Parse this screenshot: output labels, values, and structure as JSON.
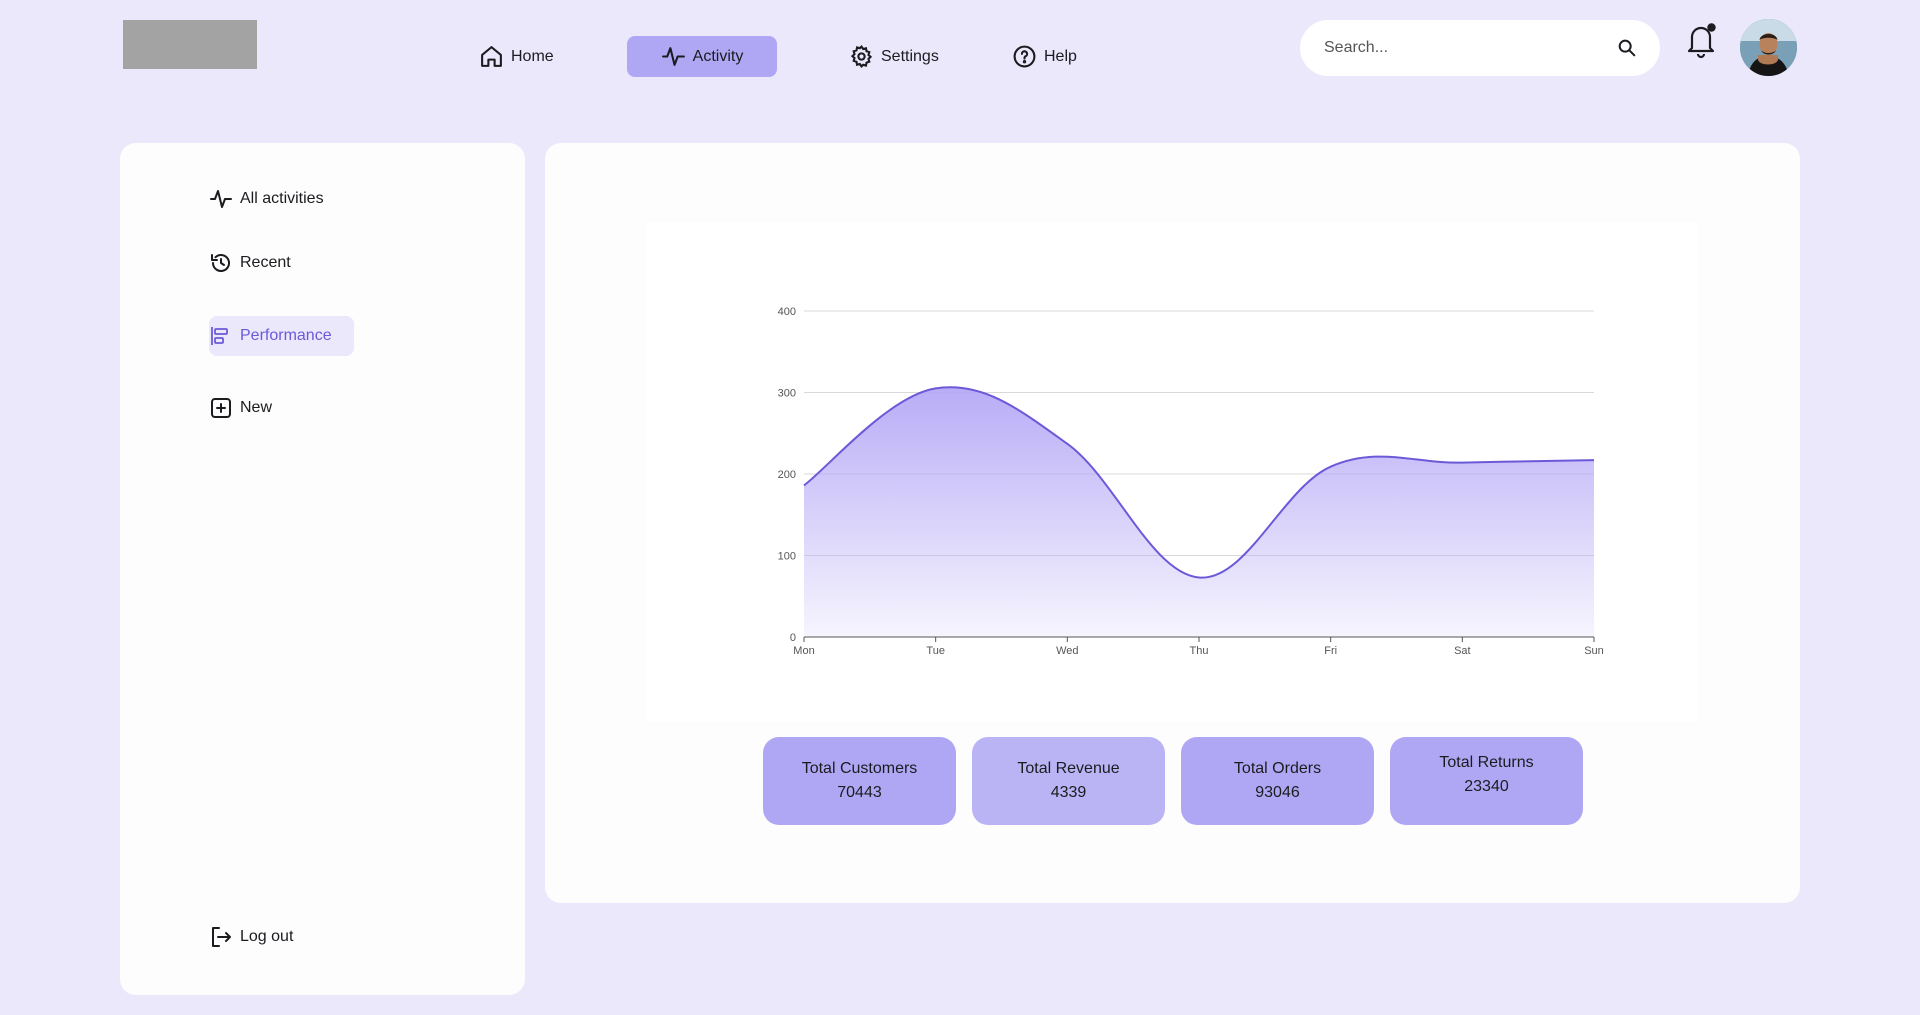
{
  "header": {
    "logo": "logo-placeholder",
    "nav": [
      {
        "label": "Home",
        "icon": "home-icon",
        "active": false
      },
      {
        "label": "Activity",
        "icon": "activity-icon",
        "active": true
      },
      {
        "label": "Settings",
        "icon": "gear-icon",
        "active": false
      },
      {
        "label": "Help",
        "icon": "help-icon",
        "active": false
      }
    ],
    "search": {
      "placeholder": "Search...",
      "value": ""
    },
    "notifications_icon": "bell-icon",
    "avatar_icon": "user-avatar"
  },
  "sidebar": {
    "items": [
      {
        "label": "All activities",
        "icon": "activity-icon",
        "active": false
      },
      {
        "label": "Recent",
        "icon": "history-icon",
        "active": false
      },
      {
        "label": "Performance",
        "icon": "performance-icon",
        "active": true
      },
      {
        "label": "New",
        "icon": "plus-box-icon",
        "active": false
      }
    ],
    "logout": {
      "label": "Log out",
      "icon": "logout-icon"
    }
  },
  "colors": {
    "page_bg": "#ebe8fc",
    "accent": "#b0a7f4",
    "accent_text": "#6b5ad8",
    "line": "#6b5ad8",
    "card_bg": "#fdfdfd"
  },
  "chart_data": {
    "type": "area",
    "categories": [
      "Mon",
      "Tue",
      "Wed",
      "Thu",
      "Fri",
      "Sat",
      "Sun"
    ],
    "series": [
      {
        "values": [
          186,
          305,
          237,
          73,
          209,
          214,
          217
        ]
      }
    ],
    "yticks": [
      0,
      100,
      200,
      300,
      400
    ],
    "ylim": [
      0,
      400
    ],
    "grid": true,
    "smooth": true
  },
  "stats": [
    {
      "label": "Total Customers",
      "value": "70443"
    },
    {
      "label": "Total Revenue",
      "value": "4339"
    },
    {
      "label": "Total Orders",
      "value": "93046"
    },
    {
      "label": "Total Returns",
      "value": "23340"
    }
  ]
}
